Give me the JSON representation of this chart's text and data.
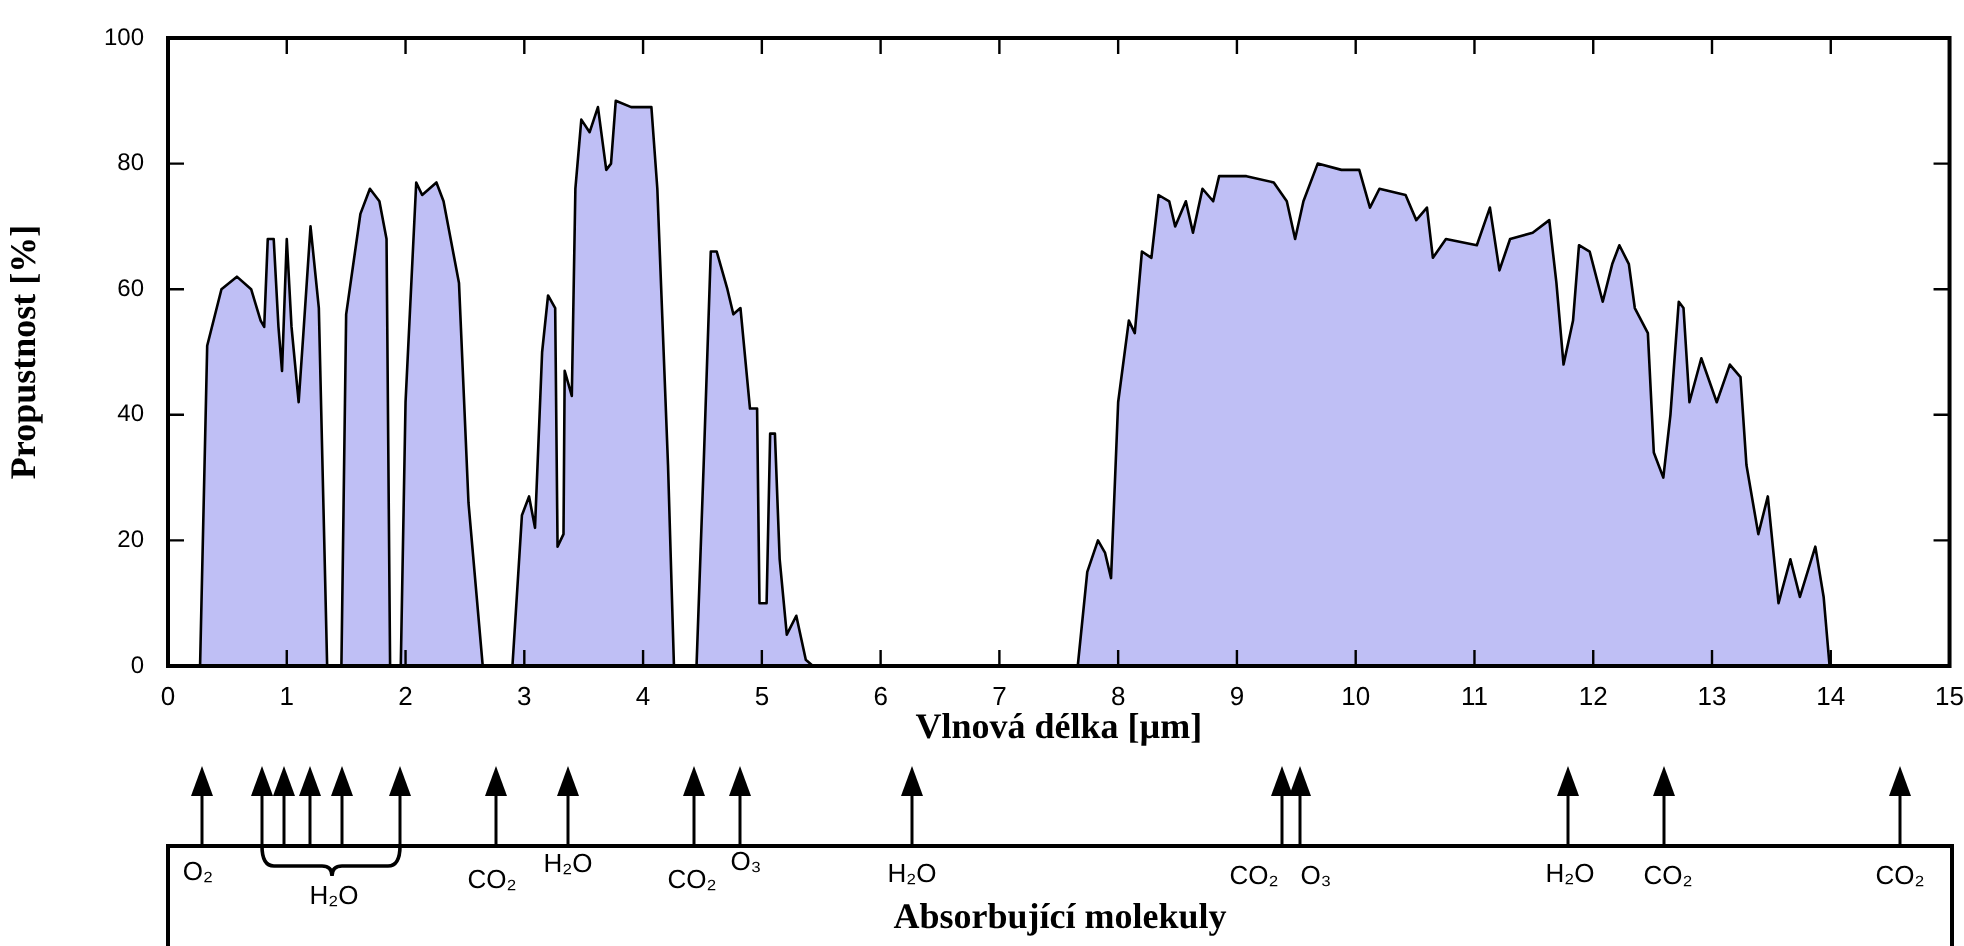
{
  "chart_data": {
    "type": "area",
    "xlabel": "Vlnová délka [µm]",
    "ylabel": "Propustnost [%]",
    "x": [
      0.27,
      0.33,
      0.45,
      0.58,
      0.7,
      0.78,
      0.81,
      0.84,
      0.89,
      0.93,
      0.96,
      1.0,
      1.04,
      1.1,
      1.14,
      1.2,
      1.27,
      1.34,
      1.46,
      1.5,
      1.62,
      1.7,
      1.78,
      1.84,
      1.87,
      1.96,
      2.0,
      2.09,
      2.14,
      2.26,
      2.32,
      2.45,
      2.53,
      2.65,
      2.9,
      2.98,
      3.04,
      3.09,
      3.15,
      3.2,
      3.26,
      3.28,
      3.33,
      3.34,
      3.4,
      3.43,
      3.48,
      3.55,
      3.62,
      3.69,
      3.73,
      3.77,
      3.9,
      4.07,
      4.12,
      4.21,
      4.26,
      4.45,
      4.51,
      4.57,
      4.62,
      4.71,
      4.76,
      4.82,
      4.86,
      4.9,
      4.96,
      4.98,
      5.04,
      5.07,
      5.11,
      5.15,
      5.21,
      5.29,
      5.37,
      5.43,
      7.66,
      7.74,
      7.83,
      7.89,
      7.94,
      8.0,
      8.09,
      8.14,
      8.2,
      8.28,
      8.34,
      8.43,
      8.48,
      8.57,
      8.63,
      8.71,
      8.8,
      8.85,
      9.08,
      9.31,
      9.42,
      9.49,
      9.56,
      9.68,
      9.88,
      10.03,
      10.12,
      10.2,
      10.42,
      10.51,
      10.6,
      10.65,
      10.76,
      11.02,
      11.13,
      11.21,
      11.3,
      11.49,
      11.63,
      11.69,
      11.75,
      11.83,
      11.88,
      11.97,
      12.08,
      12.16,
      12.22,
      12.3,
      12.35,
      12.46,
      12.51,
      12.59,
      12.65,
      12.72,
      12.76,
      12.81,
      12.91,
      13.04,
      13.15,
      13.24,
      13.29,
      13.39,
      13.47,
      13.56,
      13.66,
      13.74,
      13.87,
      13.94,
      13.99
    ],
    "series": [
      {
        "color": "#bfbff5",
        "values": [
          0,
          51,
          60,
          62,
          60,
          55,
          54,
          68,
          68,
          54,
          47,
          68,
          54,
          42,
          53,
          70,
          57,
          0,
          0,
          56,
          72,
          76,
          74,
          68,
          0,
          0,
          42,
          77,
          75,
          77,
          74,
          61,
          26,
          0,
          0,
          24,
          27,
          22,
          50,
          59,
          57,
          19,
          21,
          47,
          43,
          76,
          87,
          85,
          89,
          79,
          80,
          90,
          89,
          89,
          76,
          32,
          0,
          0,
          32,
          66,
          66,
          60,
          56,
          57,
          49,
          41,
          41,
          10,
          10,
          37,
          37,
          17,
          5,
          8,
          1,
          0,
          0,
          15,
          20,
          18,
          14,
          42,
          55,
          53,
          66,
          65,
          75,
          74,
          70,
          74,
          69,
          76,
          74,
          78,
          78,
          77,
          74,
          68,
          74,
          80,
          79,
          79,
          73,
          76,
          75,
          71,
          73,
          65,
          68,
          67,
          73,
          63,
          68,
          69,
          71,
          61,
          48,
          55,
          67,
          66,
          58,
          64,
          67,
          64,
          57,
          53,
          34,
          30,
          40,
          58,
          57,
          42,
          49,
          42,
          48,
          46,
          32,
          21,
          27,
          10,
          17,
          11,
          19,
          11,
          0
        ]
      }
    ],
    "xlim": [
      0,
      15
    ],
    "xticks": [
      0,
      1,
      2,
      3,
      4,
      5,
      6,
      7,
      8,
      9,
      10,
      11,
      12,
      13,
      14,
      15
    ],
    "ylim": [
      0,
      100
    ],
    "yticks": [
      0,
      20,
      40,
      60,
      80,
      100
    ],
    "annotations": [
      "O₂",
      "H₂O",
      "CO₂",
      "H₂O",
      "CO₂",
      "O₃",
      "H₂O",
      "CO₂",
      "O₃",
      "H₂O",
      "CO₂",
      "CO₂",
      "Absorbující molekuly"
    ]
  }
}
